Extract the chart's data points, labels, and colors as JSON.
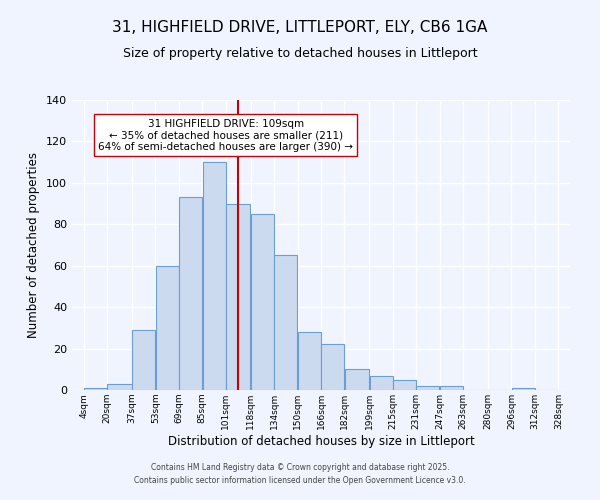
{
  "title": "31, HIGHFIELD DRIVE, LITTLEPORT, ELY, CB6 1GA",
  "subtitle": "Size of property relative to detached houses in Littleport",
  "xlabel": "Distribution of detached houses by size in Littleport",
  "ylabel": "Number of detached properties",
  "bins": [
    4,
    20,
    37,
    53,
    69,
    85,
    101,
    118,
    134,
    150,
    166,
    182,
    199,
    215,
    231,
    247,
    263,
    280,
    296,
    312,
    328
  ],
  "counts": [
    1,
    3,
    29,
    60,
    93,
    110,
    90,
    85,
    65,
    28,
    22,
    10,
    7,
    5,
    2,
    2,
    0,
    0,
    1,
    0
  ],
  "bar_facecolor": "#ccdaf0",
  "bar_edgecolor": "#6b9fd4",
  "vline_x": 109,
  "vline_color": "#cc0000",
  "annotation_text": "31 HIGHFIELD DRIVE: 109sqm\n← 35% of detached houses are smaller (211)\n64% of semi-detached houses are larger (390) →",
  "annotation_box_edgecolor": "#cc0000",
  "annotation_box_facecolor": "#ffffff",
  "ylim": [
    0,
    140
  ],
  "tick_labels": [
    "4sqm",
    "20sqm",
    "37sqm",
    "53sqm",
    "69sqm",
    "85sqm",
    "101sqm",
    "118sqm",
    "134sqm",
    "150sqm",
    "166sqm",
    "182sqm",
    "199sqm",
    "215sqm",
    "231sqm",
    "247sqm",
    "263sqm",
    "280sqm",
    "296sqm",
    "312sqm",
    "328sqm"
  ],
  "footer1": "Contains HM Land Registry data © Crown copyright and database right 2025.",
  "footer2": "Contains public sector information licensed under the Open Government Licence v3.0.",
  "bg_color": "#f0f4ff",
  "grid_color": "#ffffff",
  "title_fontsize": 11,
  "subtitle_fontsize": 9,
  "annotation_fontsize": 7.5
}
